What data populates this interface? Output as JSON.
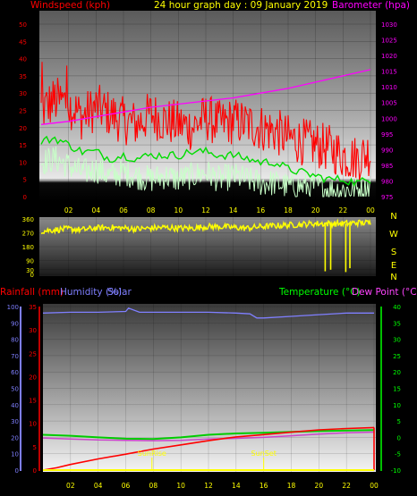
{
  "header": {
    "windspeed_label": "Windspeed (kph)",
    "title": "24 hour graph day : 09 January 2019",
    "barometer_label": "Barometer (hpa)"
  },
  "bottom_header": {
    "rainfall_label": "Rainfall (mm)",
    "humidity_label": "Humidity (%)",
    "solar_label": "Solar",
    "temperature_label": "Temperature (°C)",
    "dewpoint_label": "Dew Point (°C)"
  },
  "compass": [
    "N",
    "W",
    "S",
    "E",
    "N"
  ],
  "colors": {
    "wind_gust": "#ff0000",
    "wind_avg": "#c8ffc8",
    "wind_ten_min": "#00dd00",
    "barometer": "#ff00ff",
    "direction": "#ffff00",
    "rainfall": "#ff0000",
    "humidity": "#7f7fff",
    "solar": "#ffff00",
    "temperature": "#00cc00",
    "dewpoint": "#cc44cc",
    "left_axis_wind": "#ff0000",
    "right_axis_baro": "#ff00ff",
    "direction_axis": "#ffff00",
    "humidity_axis": "#7f7fff",
    "temperature_axis": "#00ff00"
  },
  "chart_data": [
    {
      "id": "wind",
      "type": "line",
      "title": "24 hour graph day : 09 January 2019",
      "ylabel": "Windspeed (kph)",
      "y2label": "Barometer (hpa)",
      "x_ticks": [
        "02",
        "04",
        "06",
        "08",
        "10",
        "12",
        "14",
        "16",
        "18",
        "20",
        "22",
        "00"
      ],
      "xlim_hours": [
        0,
        24
      ],
      "ylim": [
        0,
        50
      ],
      "yticks": [
        0,
        5,
        10,
        15,
        20,
        25,
        30,
        35,
        40,
        45,
        50
      ],
      "y2lim": [
        970,
        1030
      ],
      "y2ticks": [
        975,
        980,
        985,
        990,
        995,
        1000,
        1005,
        1010,
        1015,
        1020,
        1025,
        1030
      ],
      "grid": true,
      "series": [
        {
          "key": "gust",
          "color": "#ff0000",
          "hours": [
            0,
            1,
            2,
            3,
            4,
            5,
            6,
            7,
            8,
            9,
            10,
            11,
            12,
            13,
            14,
            15,
            16,
            17,
            18,
            19,
            20,
            21,
            22,
            23,
            24
          ],
          "values": [
            25,
            28,
            27,
            23,
            26,
            24,
            22,
            21,
            24,
            22,
            21,
            20,
            23,
            21,
            22,
            21,
            20,
            19,
            17,
            16,
            15,
            14,
            12,
            11,
            13
          ]
        },
        {
          "key": "avg",
          "color": "#c8ffc8",
          "hours": [
            0,
            1,
            2,
            3,
            4,
            5,
            6,
            7,
            8,
            9,
            10,
            11,
            12,
            13,
            14,
            15,
            16,
            17,
            18,
            19,
            20,
            21,
            22,
            23,
            24
          ],
          "values": [
            10,
            11,
            9,
            7,
            8,
            6,
            7,
            6,
            5,
            6,
            5,
            6,
            7,
            5,
            6,
            5,
            4,
            4,
            3,
            3,
            3,
            2,
            2,
            2,
            3
          ]
        },
        {
          "key": "ten_min",
          "color": "#00dd00",
          "hours": [
            0,
            1,
            2,
            3,
            4,
            5,
            6,
            7,
            8,
            9,
            10,
            11,
            12,
            13,
            14,
            15,
            16,
            17,
            18,
            19,
            20,
            21,
            22,
            23,
            24
          ],
          "values": [
            16,
            17,
            15,
            13,
            13,
            11,
            12,
            11,
            12,
            12,
            12,
            13,
            13,
            12,
            12,
            11,
            10,
            10,
            8,
            7,
            6,
            5,
            5,
            4,
            5
          ]
        },
        {
          "key": "barometer",
          "axis": "y2",
          "color": "#ff00ff",
          "hours": [
            0,
            2,
            4,
            6,
            8,
            10,
            12,
            14,
            16,
            18,
            20,
            22,
            24
          ],
          "values": [
            998,
            999,
            1000.5,
            1002,
            1003.5,
            1004.5,
            1005.5,
            1006.5,
            1008,
            1009.5,
            1011.5,
            1013.5,
            1015.5
          ]
        }
      ]
    },
    {
      "id": "direction",
      "type": "line",
      "ylim": [
        0,
        360
      ],
      "yticks": [
        0,
        30,
        90,
        180,
        270,
        360
      ],
      "x_ticks": [
        "02",
        "04",
        "06",
        "08",
        "10",
        "12",
        "14",
        "16",
        "18",
        "20",
        "22",
        "00"
      ],
      "series": [
        {
          "key": "direction",
          "color": "#ffff00",
          "hours": [
            0,
            1,
            2,
            3,
            4,
            5,
            6,
            7,
            8,
            9,
            10,
            11,
            12,
            13,
            14,
            15,
            16,
            17,
            18,
            19,
            20,
            21,
            22,
            23,
            24
          ],
          "values": [
            280,
            290,
            295,
            290,
            300,
            305,
            300,
            295,
            300,
            305,
            300,
            300,
            310,
            310,
            305,
            300,
            310,
            315,
            320,
            325,
            330,
            330,
            330,
            335,
            335
          ]
        }
      ],
      "spikes_hours": [
        20.7,
        21.1,
        22.2,
        22.5
      ],
      "spikes_values": [
        20,
        30,
        15,
        40
      ]
    },
    {
      "id": "temp_hum",
      "type": "line",
      "x_ticks": [
        "02",
        "04",
        "06",
        "08",
        "10",
        "12",
        "14",
        "16",
        "18",
        "20",
        "22",
        "00"
      ],
      "ylim_left": [
        0,
        100
      ],
      "yticks_left": [
        0,
        10,
        20,
        30,
        40,
        50,
        60,
        70,
        80,
        90,
        100
      ],
      "ylim_mid": [
        0,
        35
      ],
      "yticks_mid": [
        0,
        5,
        10,
        15,
        20,
        25,
        30,
        35
      ],
      "ylim_right": [
        -10,
        40
      ],
      "yticks_right": [
        -10,
        -5,
        0,
        5,
        10,
        15,
        20,
        25,
        30,
        35,
        40
      ],
      "annotations": [
        "SunRise",
        "SunSet"
      ],
      "annotation_hours": [
        7.9,
        16.0
      ],
      "series": [
        {
          "key": "humidity",
          "color": "#7f7fff",
          "hours": [
            0,
            2,
            4,
            6,
            6.2,
            7,
            10,
            12,
            14,
            15,
            15.5,
            16,
            18,
            20,
            22,
            24
          ],
          "values": [
            96,
            96.5,
            96.5,
            97,
            99,
            96.5,
            96.5,
            96.5,
            96,
            95.5,
            93,
            93,
            94,
            95,
            96,
            96
          ]
        },
        {
          "key": "temperature",
          "color": "#00cc00",
          "hours": [
            0,
            2,
            4,
            6,
            8,
            10,
            12,
            14,
            16,
            18,
            20,
            22,
            24
          ],
          "values": [
            0.8,
            0.5,
            0.0,
            -0.4,
            -0.5,
            0.0,
            0.8,
            1.2,
            1.4,
            1.7,
            1.9,
            2.1,
            2.2
          ]
        },
        {
          "key": "dewpoint",
          "color": "#cc44cc",
          "hours": [
            0,
            2,
            4,
            6,
            8,
            10,
            12,
            14,
            16,
            18,
            20,
            22,
            24
          ],
          "values": [
            -0.2,
            -0.5,
            -0.8,
            -0.9,
            -1.0,
            -0.9,
            -0.5,
            -0.3,
            0.0,
            0.5,
            1.0,
            1.4,
            1.6
          ]
        },
        {
          "key": "rainfall",
          "color": "#ff0000",
          "hours": [
            0,
            1,
            2,
            4,
            6,
            8,
            10,
            12,
            14,
            16,
            18,
            20,
            22,
            24
          ],
          "values": [
            0,
            0.5,
            1.2,
            2.4,
            3.4,
            4.5,
            5.4,
            6.3,
            7.1,
            7.6,
            8.1,
            8.6,
            8.9,
            9.1
          ]
        }
      ]
    }
  ]
}
